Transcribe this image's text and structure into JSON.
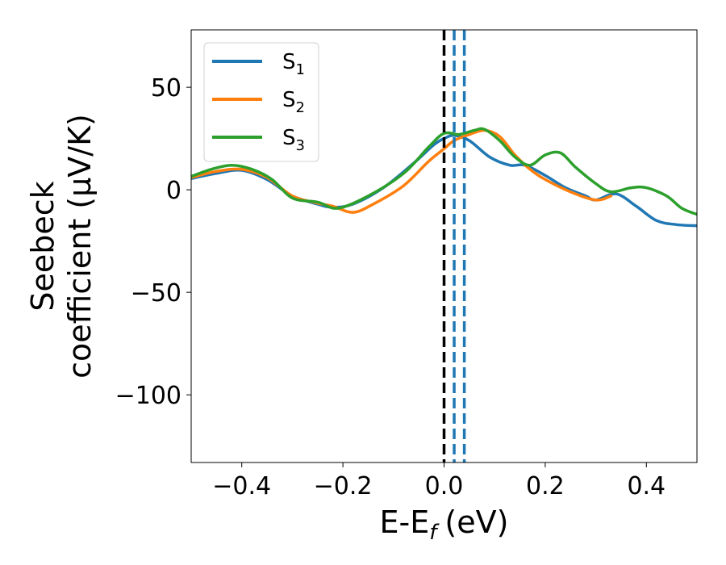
{
  "chart_data": {
    "type": "line",
    "xlabel": "E-E",
    "xlabel_sub": "f",
    "xlabel_unit": "(eV)",
    "ylabel_line1": "Seebeck",
    "ylabel_line2": "coefficient  (μV/K)",
    "xlim": [
      -0.5,
      0.5
    ],
    "ylim": [
      -133,
      78
    ],
    "xticks": [
      -0.4,
      -0.2,
      0.0,
      0.2,
      0.4
    ],
    "xtick_labels": [
      "−0.4",
      "−0.2",
      "0.0",
      "0.2",
      "0.4"
    ],
    "yticks": [
      50,
      0,
      -50,
      -100
    ],
    "ytick_labels": [
      "50",
      "0",
      "−50",
      "−100"
    ],
    "legend_position": "top-left",
    "series": [
      {
        "name": "S",
        "sub": "1",
        "color": "#1f77b4",
        "points": [
          [
            -0.5,
            5.5
          ],
          [
            -0.45,
            8
          ],
          [
            -0.4,
            9.5
          ],
          [
            -0.35,
            5
          ],
          [
            -0.3,
            -3
          ],
          [
            -0.25,
            -7
          ],
          [
            -0.22,
            -8.5
          ],
          [
            -0.18,
            -7
          ],
          [
            -0.12,
            1
          ],
          [
            -0.06,
            13
          ],
          [
            -0.02,
            22
          ],
          [
            0,
            25
          ],
          [
            0.02,
            26.5
          ],
          [
            0.05,
            24
          ],
          [
            0.09,
            16
          ],
          [
            0.13,
            12
          ],
          [
            0.16,
            12
          ],
          [
            0.2,
            7
          ],
          [
            0.24,
            1
          ],
          [
            0.28,
            -3
          ],
          [
            0.3,
            -5
          ],
          [
            0.34,
            -2
          ],
          [
            0.38,
            -8
          ],
          [
            0.42,
            -15
          ],
          [
            0.46,
            -17
          ],
          [
            0.5,
            -17.5
          ]
        ]
      },
      {
        "name": "S",
        "sub": "2",
        "color": "#ff7f0e",
        "points": [
          [
            -0.5,
            6
          ],
          [
            -0.45,
            9
          ],
          [
            -0.4,
            10
          ],
          [
            -0.35,
            6
          ],
          [
            -0.3,
            -3
          ],
          [
            -0.25,
            -6.5
          ],
          [
            -0.22,
            -8
          ],
          [
            -0.18,
            -11
          ],
          [
            -0.14,
            -7
          ],
          [
            -0.08,
            2
          ],
          [
            -0.03,
            14
          ],
          [
            0,
            20
          ],
          [
            0.02,
            24
          ],
          [
            0.05,
            27
          ],
          [
            0.08,
            29
          ],
          [
            0.11,
            26
          ],
          [
            0.14,
            17
          ],
          [
            0.17,
            10
          ],
          [
            0.2,
            5
          ],
          [
            0.25,
            -1
          ],
          [
            0.3,
            -5
          ],
          [
            0.33,
            -3
          ]
        ]
      },
      {
        "name": "S",
        "sub": "3",
        "color": "#2ca02c",
        "points": [
          [
            -0.5,
            6.5
          ],
          [
            -0.46,
            10
          ],
          [
            -0.42,
            12
          ],
          [
            -0.38,
            10
          ],
          [
            -0.34,
            5
          ],
          [
            -0.3,
            -4
          ],
          [
            -0.25,
            -6
          ],
          [
            -0.21,
            -9
          ],
          [
            -0.15,
            -3
          ],
          [
            -0.08,
            8
          ],
          [
            -0.03,
            21
          ],
          [
            0,
            27.5
          ],
          [
            0.03,
            27
          ],
          [
            0.06,
            29
          ],
          [
            0.08,
            29.5
          ],
          [
            0.11,
            24
          ],
          [
            0.14,
            16
          ],
          [
            0.17,
            12
          ],
          [
            0.2,
            17
          ],
          [
            0.23,
            18
          ],
          [
            0.26,
            11
          ],
          [
            0.3,
            3
          ],
          [
            0.33,
            -1
          ],
          [
            0.37,
            1
          ],
          [
            0.4,
            1
          ],
          [
            0.44,
            -3
          ],
          [
            0.47,
            -9
          ],
          [
            0.5,
            -12
          ]
        ]
      }
    ],
    "vlines": [
      {
        "x": 0.0,
        "color": "#000000",
        "style": "dashed"
      },
      {
        "x": 0.02,
        "color": "#1f77b4",
        "style": "dashed"
      },
      {
        "x": 0.04,
        "color": "#1f77b4",
        "style": "dashed"
      }
    ]
  }
}
